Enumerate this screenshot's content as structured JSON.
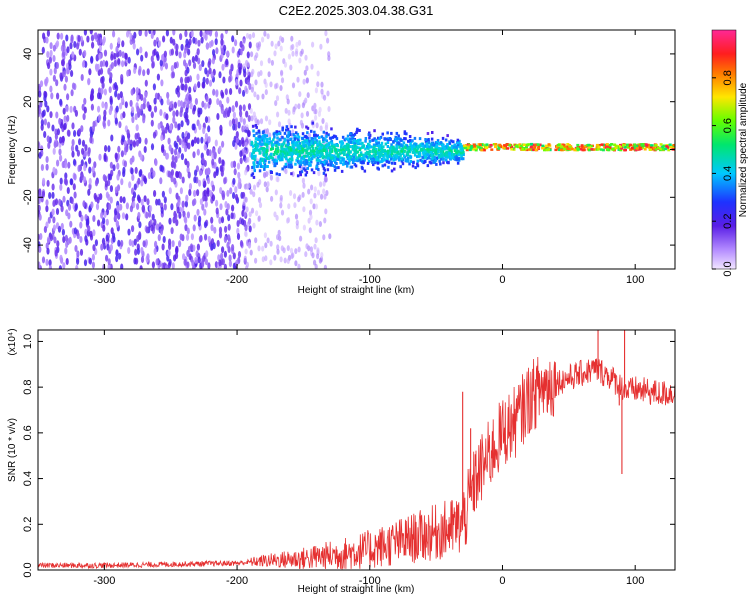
{
  "title": "C2E2.2025.303.04.38.G31",
  "chart_data": [
    {
      "type": "heatmap",
      "xlabel": "Height of straight line (km)",
      "ylabel": "Frequency (Hz)",
      "xlim": [
        -350,
        130
      ],
      "ylim": [
        -50,
        50
      ],
      "xticks": [
        -300,
        -200,
        -100,
        0,
        100
      ],
      "yticks": [
        -40,
        -20,
        0,
        20,
        40
      ],
      "colorbar": {
        "label": "Normalized spectral amplitude",
        "range": [
          0,
          1
        ],
        "ticks": [
          0.0,
          0.2,
          0.4,
          0.6,
          0.8
        ],
        "colormap": "rainbow (purple → blue → cyan → green → yellow → red → magenta)"
      },
      "description_regions": [
        {
          "x_range": [
            -350,
            -190
          ],
          "freq_range": [
            -50,
            50
          ],
          "amplitude": "low-medium (purple, broad noise)"
        },
        {
          "x_range": [
            -190,
            -30
          ],
          "freq_range": [
            -15,
            15
          ],
          "amplitude": "medium (blue-cyan, narrowing band)"
        },
        {
          "x_range": [
            -30,
            130
          ],
          "freq_range": [
            -2,
            4
          ],
          "amplitude": "high (green-red, narrow carrier line)"
        }
      ]
    },
    {
      "type": "line",
      "xlabel": "Height of straight line (km)",
      "ylabel": "SNR (10 * v/v)",
      "y_multiplier": "(x10⁴)",
      "xlim": [
        -350,
        130
      ],
      "ylim": [
        0,
        1.05
      ],
      "xticks": [
        -300,
        -200,
        -100,
        0,
        100
      ],
      "yticks": [
        0.0,
        0.2,
        0.4,
        0.6,
        0.8,
        1.0
      ],
      "series": [
        {
          "name": "SNR",
          "color": "#e53030",
          "x": [
            -350,
            -300,
            -250,
            -200,
            -180,
            -150,
            -120,
            -100,
            -80,
            -60,
            -40,
            -30,
            -25,
            -20,
            -15,
            -10,
            -5,
            0,
            10,
            20,
            30,
            40,
            50,
            60,
            70,
            80,
            90,
            95,
            100,
            110,
            120,
            130
          ],
          "y": [
            0.02,
            0.02,
            0.025,
            0.03,
            0.04,
            0.05,
            0.07,
            0.09,
            0.12,
            0.15,
            0.18,
            0.2,
            0.3,
            0.4,
            0.45,
            0.5,
            0.55,
            0.6,
            0.65,
            0.75,
            0.8,
            0.82,
            0.84,
            0.86,
            0.88,
            0.85,
            0.8,
            0.78,
            0.79,
            0.78,
            0.77,
            0.78
          ]
        }
      ],
      "spikes": [
        {
          "x": -30,
          "y": 0.78
        },
        {
          "x": -24,
          "y": 0.62
        },
        {
          "x": 72,
          "y": 1.05
        },
        {
          "x": 88,
          "y": 0.72
        },
        {
          "x": 90,
          "y": 0.42
        },
        {
          "x": 92,
          "y": 1.05
        }
      ]
    }
  ]
}
